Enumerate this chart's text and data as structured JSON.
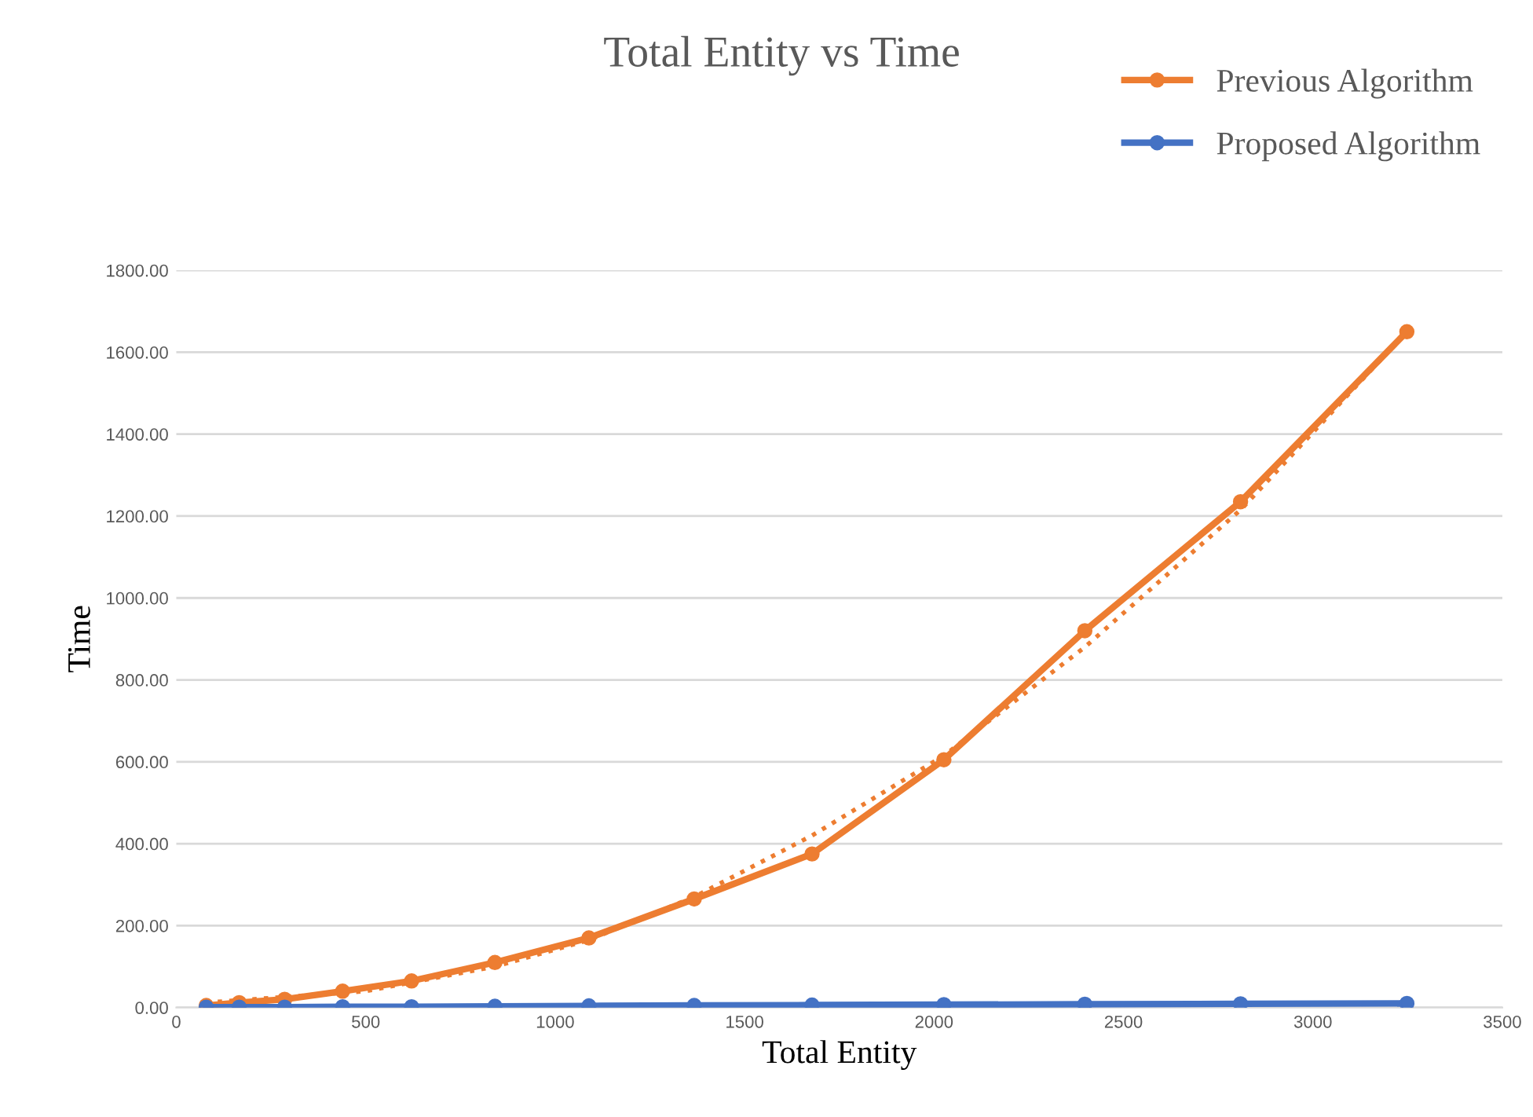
{
  "chart_data": {
    "type": "line",
    "title": "Total Entity vs Time",
    "xlabel": "Total Entity",
    "ylabel": "Time",
    "xlim": [
      0,
      3500
    ],
    "xticks": [
      0,
      500,
      1000,
      1500,
      2000,
      2500,
      3000,
      3500
    ],
    "ylim": [
      0,
      1800
    ],
    "yticks": [
      {
        "value": 0,
        "label": "0.00"
      },
      {
        "value": 200,
        "label": "200.00"
      },
      {
        "value": 400,
        "label": "400.00"
      },
      {
        "value": 600,
        "label": "600.00"
      },
      {
        "value": 800,
        "label": "800.00"
      },
      {
        "value": 1000,
        "label": "1000.00"
      },
      {
        "value": 1200,
        "label": "1200.00"
      },
      {
        "value": 1400,
        "label": "1400.00"
      },
      {
        "value": 1600,
        "label": "1600.00"
      },
      {
        "value": 1800,
        "label": "1800.00"
      }
    ],
    "grid": "y",
    "legend": "top right",
    "marker": "circle",
    "line_style": "solid",
    "series": [
      {
        "name": "Previous Algorithm",
        "color": "#ed7d31",
        "x": [
          79,
          166,
          286,
          439,
          621,
          841,
          1089,
          1367,
          1678,
          2026,
          2398,
          2809,
          3248
        ],
        "values": [
          5,
          12,
          20,
          40,
          65,
          110,
          170,
          265,
          375,
          605,
          920,
          1235,
          1650
        ]
      },
      {
        "name": "Proposed Algorithm",
        "color": "#4472c4",
        "x": [
          79,
          166,
          286,
          439,
          621,
          841,
          1089,
          1367,
          1678,
          2026,
          2398,
          2809,
          3248
        ],
        "values": [
          1,
          1,
          1,
          2,
          2,
          3,
          4,
          5,
          6,
          7,
          8,
          9,
          10
        ]
      },
      {
        "type": "line",
        "color": "#ed7d31",
        "line_style": "dotted",
        "marker": "none",
        "x": [
          79,
          500,
          841,
          1089,
          1367,
          1678,
          2026,
          2398,
          2809,
          3248
        ],
        "values": [
          12,
          40,
          100,
          165,
          270,
          420,
          615,
          880,
          1215,
          1650
        ]
      }
    ]
  }
}
